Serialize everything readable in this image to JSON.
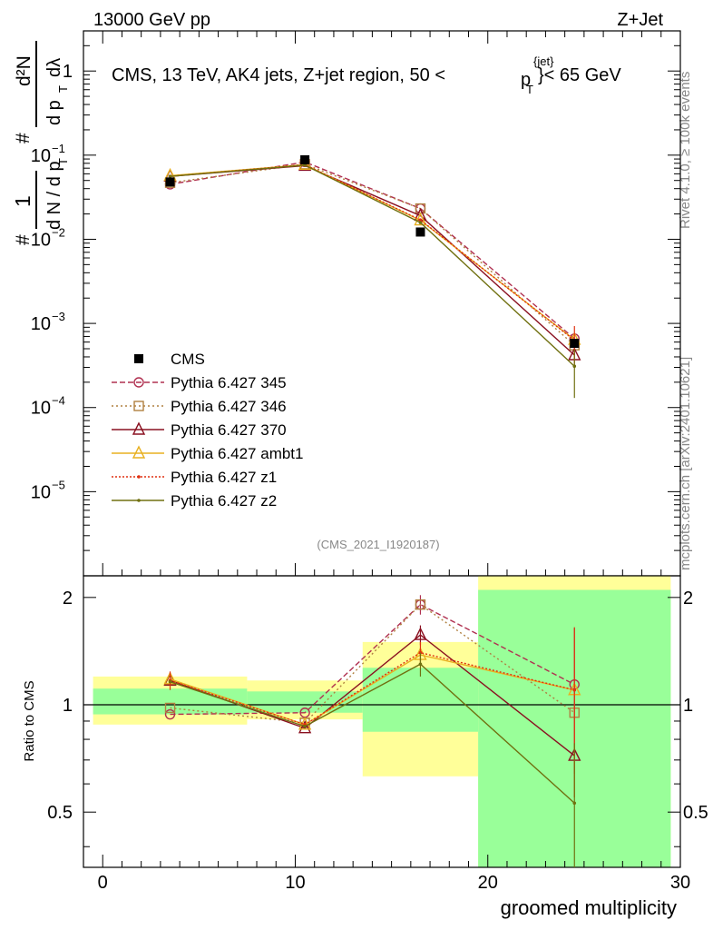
{
  "header": {
    "left": "13000 GeV pp",
    "right": "Z+Jet"
  },
  "side_labels": {
    "rivet": "Rivet 4.1.0, ≥ 100k events",
    "mcplots": "mcplots.cern.ch [arXiv:2401.10621]"
  },
  "chart_data": [
    {
      "type": "line",
      "panel": "main",
      "title_prefix": "CMS, 13 TeV, AK4 jets, Z+jet region, 50 <",
      "title_var": "p",
      "title_sub": "T",
      "title_sup": "{jet}",
      "title_suffix": "}< 65 GeV",
      "ylabel": {
        "num1": "1",
        "den1": "d N / d p",
        "den1_sub": "T",
        "hash": "#",
        "num2": "d²N",
        "den2": "d p",
        "den2_sub": "T",
        "den2_tail": "dλ"
      },
      "yscale": "log",
      "ylim": [
        1e-06,
        3
      ],
      "xlim": [
        -1,
        30
      ],
      "ytick_labels": [
        {
          "base": "1",
          "exp": ""
        },
        {
          "base": "10",
          "exp": "−1"
        },
        {
          "base": "10",
          "exp": "−2"
        },
        {
          "base": "10",
          "exp": "−3"
        },
        {
          "base": "10",
          "exp": "−4"
        },
        {
          "base": "10",
          "exp": "−5"
        }
      ],
      "ytick_values": [
        1,
        0.1,
        0.01,
        0.001,
        0.0001,
        1e-05
      ],
      "x": [
        3.5,
        10.5,
        16.5,
        24.5
      ],
      "bin_edges": [
        -1,
        7.5,
        13.5,
        19.5,
        29.5
      ],
      "data": {
        "name": "CMS",
        "values": [
          0.048,
          0.088,
          0.0122,
          0.00058
        ]
      },
      "series": [
        {
          "name": "Pythia 6.427 345",
          "color": "#b03050",
          "dash": "6,3",
          "marker": "circle",
          "values": [
            0.045,
            0.083,
            0.0232,
            0.00066
          ],
          "errors": [
            0,
            0,
            0,
            0
          ]
        },
        {
          "name": "Pythia 6.427 346",
          "color": "#b08040",
          "dash": "2,3",
          "marker": "square",
          "values": [
            0.047,
            0.078,
            0.0232,
            0.00055
          ],
          "errors": [
            0,
            0,
            0,
            0
          ]
        },
        {
          "name": "Pythia 6.427 370",
          "color": "#8a1020",
          "dash": "",
          "marker": "triangle",
          "values": [
            0.056,
            0.075,
            0.0191,
            0.00042
          ],
          "errors": [
            0,
            0,
            0,
            0
          ]
        },
        {
          "name": "Pythia 6.427 ambt1",
          "color": "#e8b020",
          "dash": "",
          "marker": "triangle",
          "values": [
            0.057,
            0.077,
            0.0168,
            0.00064
          ],
          "errors": [
            0,
            0,
            0,
            0
          ]
        },
        {
          "name": "Pythia 6.427 z1",
          "color": "#e03010",
          "dash": "2,2",
          "marker": "dot",
          "values": [
            0.056,
            0.077,
            0.017,
            0.00063
          ],
          "errors": [
            0,
            0,
            0,
            0.0003
          ]
        },
        {
          "name": "Pythia 6.427 z2",
          "color": "#707010",
          "dash": "",
          "marker": "dot",
          "values": [
            0.056,
            0.076,
            0.0158,
            0.00031
          ],
          "errors": [
            0,
            0,
            0,
            0.00018
          ]
        }
      ],
      "watermark": "(CMS_2021_I1920187)",
      "legend_data_label": "CMS"
    },
    {
      "type": "line",
      "panel": "ratio",
      "ylabel": "Ratio to CMS",
      "xlabel": "groomed multiplicity",
      "yscale": "log",
      "ylim": [
        0.35,
        2.3
      ],
      "xlim": [
        -1,
        30
      ],
      "yticks": [
        0.5,
        1,
        2
      ],
      "ytick_labels": [
        "0.5",
        "1",
        "2"
      ],
      "xticks": [
        0,
        10,
        20,
        30
      ],
      "xtick_labels": [
        "0",
        "10",
        "20",
        "30"
      ],
      "bands": [
        {
          "x0": -0.5,
          "x1": 7.5,
          "yellow": [
            0.88,
            1.2
          ],
          "green": [
            0.94,
            1.11
          ]
        },
        {
          "x0": 7.5,
          "x1": 13.5,
          "yellow": [
            0.91,
            1.17
          ],
          "green": [
            0.95,
            1.09
          ]
        },
        {
          "x0": 13.5,
          "x1": 19.5,
          "yellow": [
            0.63,
            1.5
          ],
          "green": [
            0.84,
            1.27
          ]
        },
        {
          "x0": 19.5,
          "x1": 29.5,
          "yellow": [
            0.3,
            3.0
          ],
          "green": [
            0.3,
            2.1
          ]
        }
      ],
      "x": [
        3.5,
        10.5,
        16.5,
        24.5
      ],
      "series": [
        {
          "name": "Pythia 6.427 345",
          "values": [
            0.94,
            0.95,
            1.91,
            1.14
          ],
          "errors": [
            0,
            0,
            0.12,
            0.5
          ]
        },
        {
          "name": "Pythia 6.427 346",
          "values": [
            0.98,
            0.89,
            1.91,
            0.95
          ],
          "errors": [
            0,
            0,
            0,
            0
          ]
        },
        {
          "name": "Pythia 6.427 370",
          "values": [
            1.17,
            0.86,
            1.57,
            0.72
          ],
          "errors": [
            0,
            0,
            0.1,
            0
          ]
        },
        {
          "name": "Pythia 6.427 ambt1",
          "values": [
            1.18,
            0.88,
            1.38,
            1.1
          ],
          "errors": [
            0,
            0,
            0,
            0
          ]
        },
        {
          "name": "Pythia 6.427 z1",
          "values": [
            1.17,
            0.88,
            1.4,
            1.1
          ],
          "errors": [
            0.07,
            0,
            0.1,
            0.55
          ]
        },
        {
          "name": "Pythia 6.427 z2",
          "values": [
            1.16,
            0.87,
            1.3,
            0.53
          ],
          "errors": [
            0,
            0,
            0.1,
            0.25
          ]
        }
      ]
    }
  ]
}
